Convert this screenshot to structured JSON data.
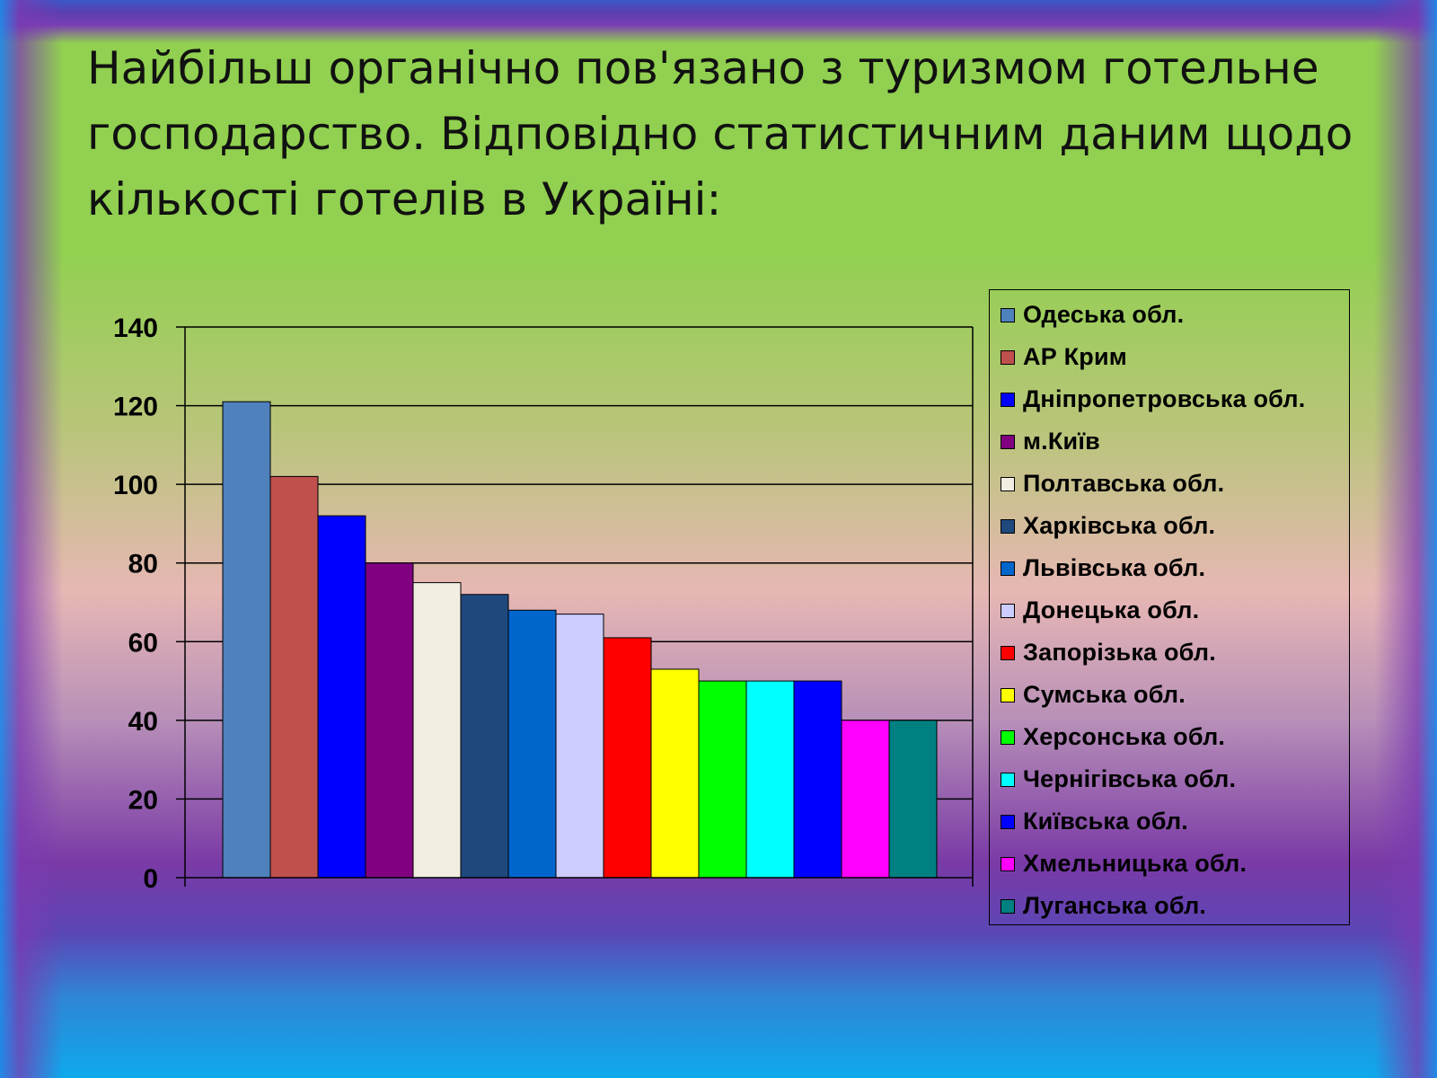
{
  "slide": {
    "title": "Найбільш органічно пов'язано з туризмом готельне господарство. Відповідно статистичним даним щодо кількості готелів в Україні:"
  },
  "chart_data": {
    "type": "bar",
    "title": "",
    "xlabel": "",
    "ylabel": "",
    "ylim": [
      0,
      140
    ],
    "yticks": [
      0,
      20,
      40,
      60,
      80,
      100,
      120,
      140
    ],
    "grid": true,
    "legend_position": "right",
    "series": [
      {
        "name": "Одеська обл.",
        "value": 121,
        "color": "#4f81bd"
      },
      {
        "name": "АР Крим",
        "value": 102,
        "color": "#c0504d"
      },
      {
        "name": "Дніпропетровська обл.",
        "value": 92,
        "color": "#0000ff"
      },
      {
        "name": "м.Київ",
        "value": 80,
        "color": "#800080"
      },
      {
        "name": "Полтавська обл.",
        "value": 75,
        "color": "#f2eee2"
      },
      {
        "name": "Харківська обл.",
        "value": 72,
        "color": "#1f497d"
      },
      {
        "name": "Львівська обл.",
        "value": 68,
        "color": "#0066cc"
      },
      {
        "name": "Донецька обл.",
        "value": 67,
        "color": "#ccccff"
      },
      {
        "name": "Запорізька обл.",
        "value": 61,
        "color": "#ff0000"
      },
      {
        "name": "Сумська обл.",
        "value": 53,
        "color": "#ffff00"
      },
      {
        "name": "Херсонська обл.",
        "value": 50,
        "color": "#00ff00"
      },
      {
        "name": "Чернігівська обл.",
        "value": 50,
        "color": "#00ffff"
      },
      {
        "name": "Київська обл.",
        "value": 50,
        "color": "#0000ff"
      },
      {
        "name": "Хмельницька обл.",
        "value": 40,
        "color": "#ff00ff"
      },
      {
        "name": "Луганська обл.",
        "value": 40,
        "color": "#008080"
      }
    ]
  }
}
